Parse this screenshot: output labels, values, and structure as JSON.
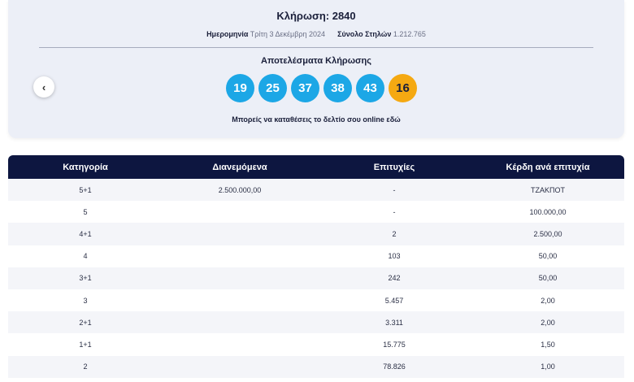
{
  "draw": {
    "title": "Κλήρωση: 2840",
    "date_label": "Ημερομηνία",
    "date_value": "Τρίτη 3 Δεκέμβρη 2024",
    "columns_label": "Σύνολο Στηλών",
    "columns_value": "1.212.765",
    "results_title": "Αποτελέσματα Κλήρωσης",
    "numbers": [
      "19",
      "25",
      "37",
      "38",
      "43"
    ],
    "bonus": "16",
    "cta_text": "Μπορείς να καταθέσεις το δελτίο σου online",
    "cta_link": "εδώ",
    "back_icon": "chevron-left-icon",
    "colors": {
      "main_ball": "#1ca7e6",
      "bonus_ball": "#f5a912",
      "header": "#0d1640"
    }
  },
  "table": {
    "headers": [
      "Κατηγορία",
      "Διανεμόμενα",
      "Επιτυχίες",
      "Κέρδη ανά επιτυχία"
    ],
    "rows": [
      [
        "5+1",
        "2.500.000,00",
        "-",
        "ΤΖΑΚΠΟΤ"
      ],
      [
        "5",
        "",
        "-",
        "100.000,00"
      ],
      [
        "4+1",
        "",
        "2",
        "2.500,00"
      ],
      [
        "4",
        "",
        "103",
        "50,00"
      ],
      [
        "3+1",
        "",
        "242",
        "50,00"
      ],
      [
        "3",
        "",
        "5.457",
        "2,00"
      ],
      [
        "2+1",
        "",
        "3.311",
        "2,00"
      ],
      [
        "1+1",
        "",
        "15.775",
        "1,50"
      ],
      [
        "2",
        "",
        "78.826",
        "1,00"
      ]
    ]
  }
}
